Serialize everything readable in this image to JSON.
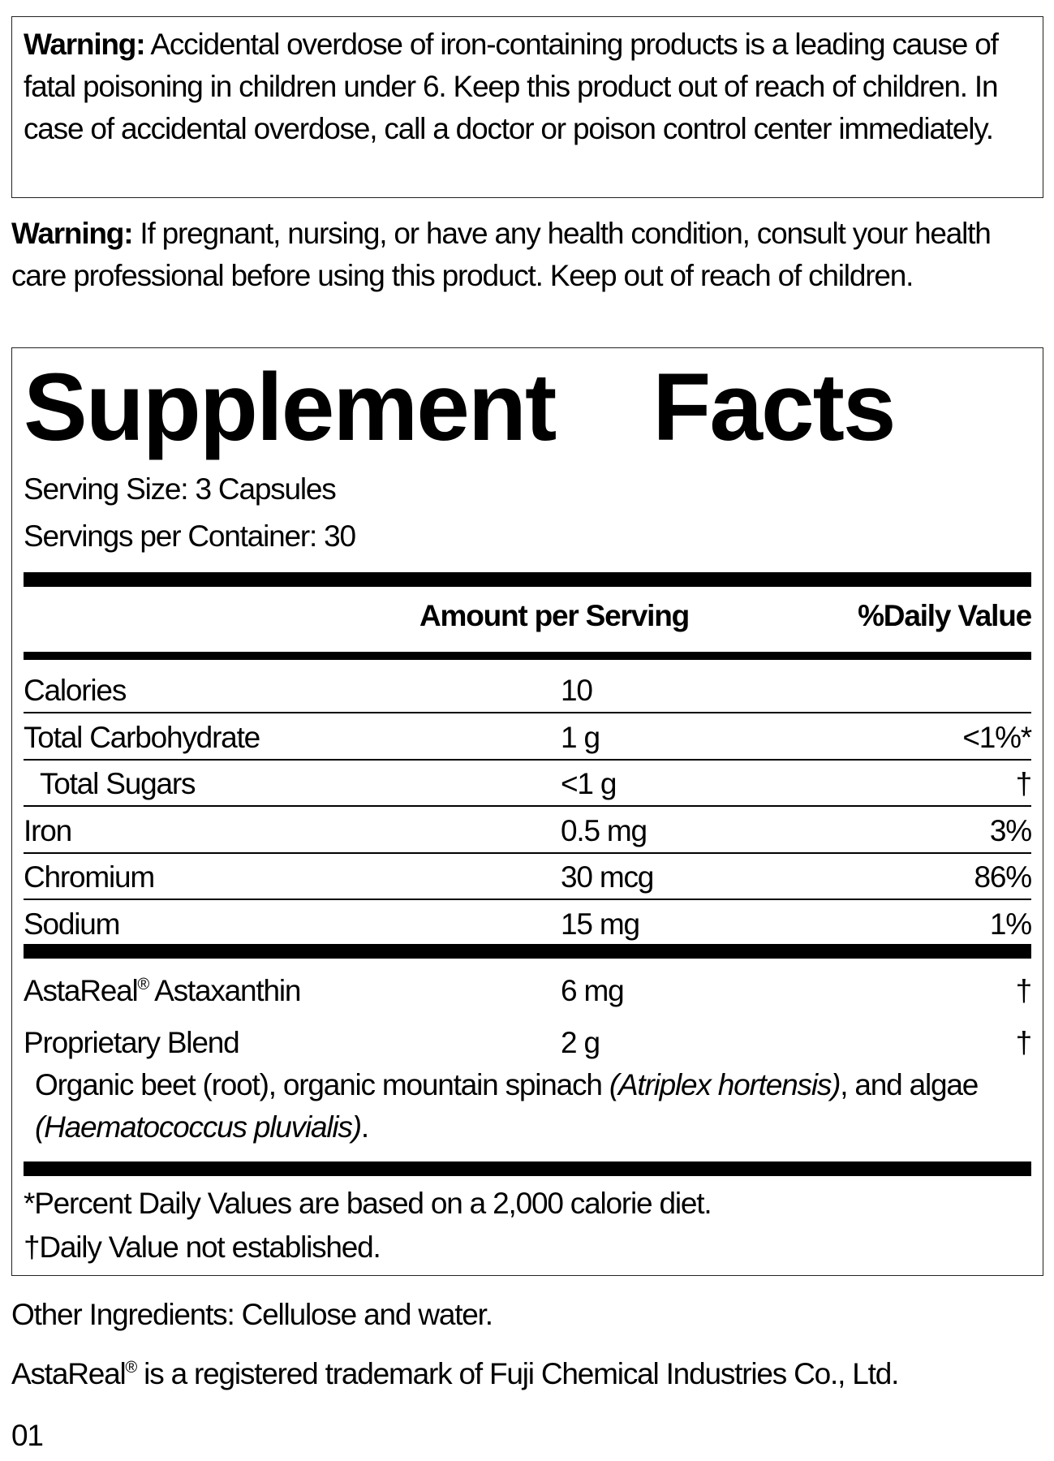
{
  "warning1": {
    "label": "Warning:",
    "text": " Accidental overdose of iron-containing products is a leading cause of fatal poisoning in children under 6. Keep this product out of reach of children. In case of accidental overdose, call a doctor or poison control center immediately."
  },
  "warning2": {
    "label": "Warning:",
    "text": " If pregnant, nursing, or have any health condition, consult your health care professional before using this product. Keep out of reach of children."
  },
  "facts": {
    "title_word1": "Supplement",
    "title_word2": "Facts",
    "serving_size": "Serving Size: 3 Capsules",
    "servings_per_container": "Servings per Container: 30",
    "header_amount": "Amount per Serving",
    "header_dv": "%Daily Value",
    "rows": [
      {
        "name": "Calories",
        "amount": "10",
        "dv": ""
      },
      {
        "name": "Total Carbohydrate",
        "amount": "1 g",
        "dv": "<1%*"
      },
      {
        "name": "Total Sugars",
        "amount": "<1 g",
        "dv": "†"
      },
      {
        "name": "Iron",
        "amount": "0.5 mg",
        "dv": "3%"
      },
      {
        "name": "Chromium",
        "amount": "30 mcg",
        "dv": "86%"
      },
      {
        "name": "Sodium",
        "amount": "15 mg",
        "dv": "1%"
      }
    ],
    "rows2": [
      {
        "name": "AstaReal",
        "reg": "®",
        "name_rest": " Astaxanthin",
        "amount": "6 mg",
        "dv": "†"
      },
      {
        "name": "Proprietary Blend",
        "amount": "2 g",
        "dv": "†"
      }
    ],
    "blend": {
      "p1": "Organic beet (root), organic mountain spinach ",
      "i1": "(Atriplex hortensis)",
      "p2": ", and algae",
      "i2": "(Haematococcus pluvialis)",
      "p3": "."
    },
    "footnote1": "*Percent Daily Values are based on a 2,000 calorie diet.",
    "footnote2": "†Daily Value not established."
  },
  "other_ingredients": "Other Ingredients: Cellulose and water.",
  "trademark": {
    "name": "AstaReal",
    "reg": "®",
    "text": " is a registered trademark of Fuji Chemical Industries Co., Ltd."
  },
  "code": "01"
}
